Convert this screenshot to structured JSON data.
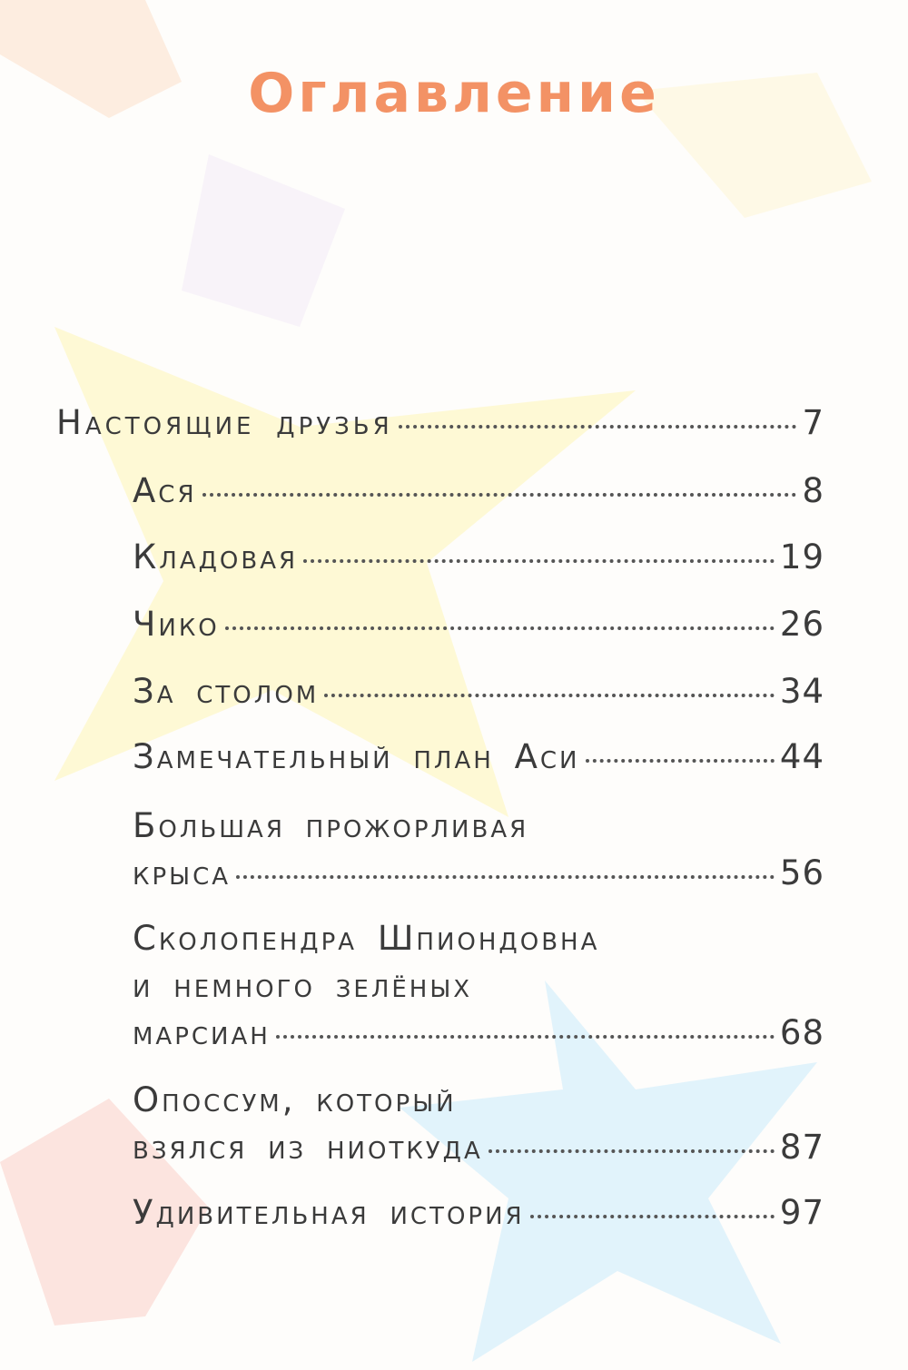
{
  "title": "Оглавление",
  "accent_color": "#f39265",
  "entries": [
    {
      "lines": [
        "Настоящие друзья"
      ],
      "page": "7",
      "level": "part"
    },
    {
      "lines": [
        "Ася"
      ],
      "page": "8",
      "level": "chapter"
    },
    {
      "lines": [
        "Кладовая"
      ],
      "page": "19",
      "level": "chapter"
    },
    {
      "lines": [
        "Чико"
      ],
      "page": "26",
      "level": "chapter"
    },
    {
      "lines": [
        "За столом"
      ],
      "page": "34",
      "level": "chapter"
    },
    {
      "lines": [
        "Замечательный план Аси"
      ],
      "page": "44",
      "level": "chapter"
    },
    {
      "lines": [
        "Большая прожорливая",
        "крыса"
      ],
      "page": "56",
      "level": "chapter"
    },
    {
      "lines": [
        "Сколопендра Шпиондовна",
        "и немного зелёных",
        "марсиан"
      ],
      "page": "68",
      "level": "chapter"
    },
    {
      "lines": [
        "Опоссум, который",
        "взялся из ниоткуда"
      ],
      "page": "87",
      "level": "chapter"
    },
    {
      "lines": [
        "Удивительная история"
      ],
      "page": "97",
      "level": "chapter"
    }
  ]
}
